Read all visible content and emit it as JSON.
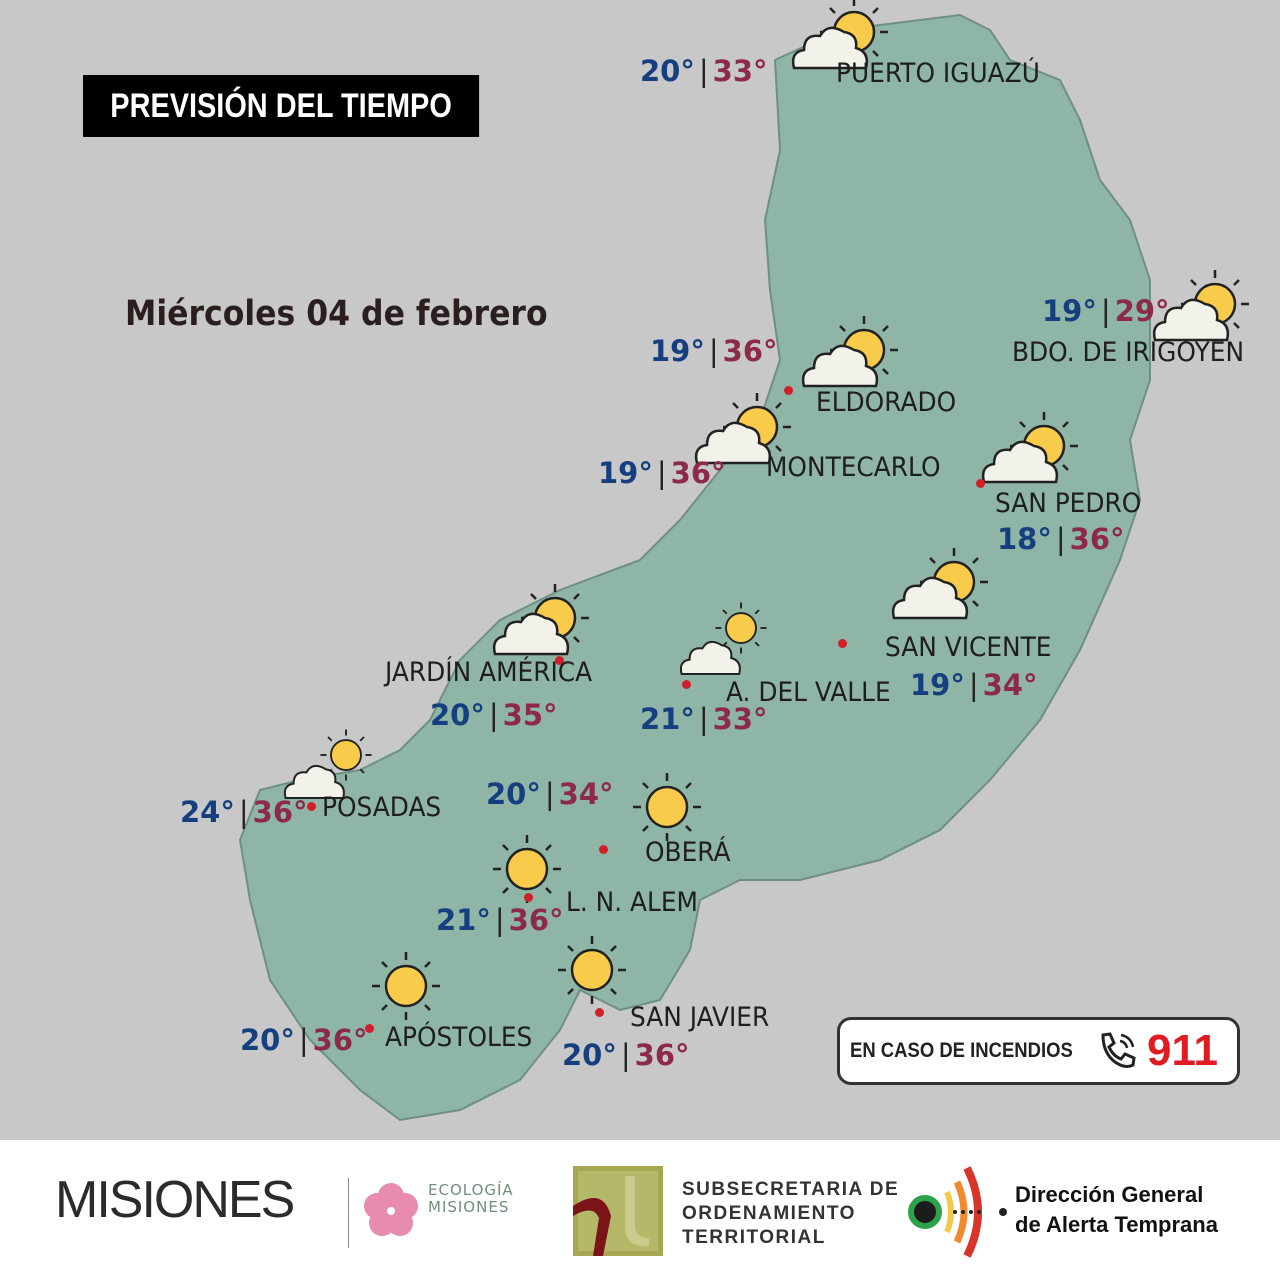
{
  "header": {
    "title": "PREVISIÓN DEL TIEMPO",
    "date": "Miércoles 04 de febrero"
  },
  "colors": {
    "background": "#c8c8c8",
    "land": "#8fb5a6",
    "min_temp": "#163f80",
    "max_temp": "#8c2a48",
    "city_dot": "#d0202a",
    "sun": "#f8cc4a"
  },
  "cities": [
    {
      "name": "PUERTO IGUAZÚ",
      "min": "20°",
      "max": "33°",
      "icon": "partly-cloudy"
    },
    {
      "name": "BDO. DE IRIGOYEN",
      "min": "19°",
      "max": "29°",
      "icon": "partly-cloudy"
    },
    {
      "name": "ELDORADO",
      "min": "19°",
      "max": "36°",
      "icon": "partly-cloudy"
    },
    {
      "name": "MONTECARLO",
      "min": "19°",
      "max": "36°",
      "icon": "partly-cloudy"
    },
    {
      "name": "SAN PEDRO",
      "min": "18°",
      "max": "36°",
      "icon": "partly-cloudy"
    },
    {
      "name": "SAN VICENTE",
      "min": "19°",
      "max": "34°",
      "icon": "partly-cloudy"
    },
    {
      "name": "JARDÍN AMÉRICA",
      "min": "20°",
      "max": "35°",
      "icon": "partly-cloudy"
    },
    {
      "name": "A. DEL VALLE",
      "min": "21°",
      "max": "33°",
      "icon": "mostly-sunny"
    },
    {
      "name": "POSADAS",
      "min": "24°",
      "max": "36°",
      "icon": "mostly-sunny"
    },
    {
      "name": "OBERÁ",
      "min": "20°",
      "max": "34°",
      "icon": "sunny"
    },
    {
      "name": "L. N. ALEM",
      "min": "21°",
      "max": "36°",
      "icon": "sunny"
    },
    {
      "name": "APÓSTOLES",
      "min": "20°",
      "max": "36°",
      "icon": "sunny"
    },
    {
      "name": "SAN JAVIER",
      "min": "20°",
      "max": "36°",
      "icon": "sunny"
    }
  ],
  "separator": "|",
  "emergency": {
    "text": "EN CASO DE INCENDIOS",
    "number": "911",
    "icon": "phone-icon"
  },
  "footer": {
    "misiones": "MISIONES",
    "ecologia": [
      "ECOLOGÍA",
      "MISIONES"
    ],
    "subsecretaria": [
      "SUBSECRETARIA DE",
      "ORDENAMIENTO",
      "TERRITORIAL"
    ],
    "alerta": [
      "Dirección General",
      "de Alerta Temprana"
    ]
  }
}
